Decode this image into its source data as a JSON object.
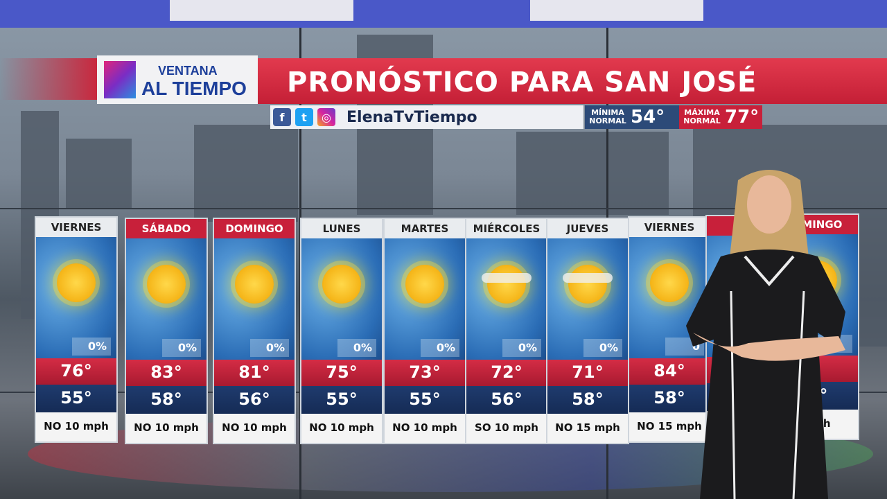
{
  "header": {
    "logo_line1": "VENTANA",
    "logo_line2": "AL TIEMPO",
    "title": "PRONÓSTICO PARA SAN JOSÉ",
    "handle": "ElenaTvTiempo",
    "social_icons": [
      "facebook-icon",
      "twitter-icon",
      "instagram-icon"
    ],
    "min_label": "MÍNIMA NORMAL",
    "min_value": "54°",
    "max_label": "MÁXIMA NORMAL",
    "max_value": "77°"
  },
  "colors": {
    "accent_red": "#c8203a",
    "dark_blue": "#152b55",
    "brand_blue": "#1d3f9a"
  },
  "forecast": [
    {
      "day": "VIERNES",
      "red": false,
      "icon": "sun",
      "precip": "0%",
      "high": "76°",
      "low": "55°",
      "wind": "NO 10 mph"
    },
    {
      "day": "SÁBADO",
      "red": true,
      "icon": "sun",
      "precip": "0%",
      "high": "83°",
      "low": "58°",
      "wind": "NO 10 mph"
    },
    {
      "day": "DOMINGO",
      "red": true,
      "icon": "sun",
      "precip": "0%",
      "high": "81°",
      "low": "56°",
      "wind": "NO 10 mph"
    },
    {
      "day": "LUNES",
      "red": false,
      "icon": "sun",
      "precip": "0%",
      "high": "75°",
      "low": "55°",
      "wind": "NO 10 mph"
    },
    {
      "day": "MARTES",
      "red": false,
      "icon": "sun",
      "precip": "0%",
      "high": "73°",
      "low": "55°",
      "wind": "NO 10 mph"
    },
    {
      "day": "MIÉRCOLES",
      "red": false,
      "icon": "sun-haze",
      "precip": "0%",
      "high": "72°",
      "low": "56°",
      "wind": "SO 10 mph"
    },
    {
      "day": "JUEVES",
      "red": false,
      "icon": "sun-haze",
      "precip": "0%",
      "high": "71°",
      "low": "58°",
      "wind": "NO 15 mph"
    },
    {
      "day": "VIERNES",
      "red": false,
      "icon": "sun",
      "precip": "0",
      "high": "84°",
      "low": "58°",
      "wind": "NO 15 mph"
    },
    {
      "day": "SÁ",
      "red": true,
      "icon": "",
      "precip": "",
      "high": "",
      "low": "",
      "wind": ""
    },
    {
      "day": "OMINGO",
      "red": true,
      "icon": "sun",
      "precip": "",
      "high": "",
      "low": "1°",
      "wind": "mph"
    }
  ]
}
